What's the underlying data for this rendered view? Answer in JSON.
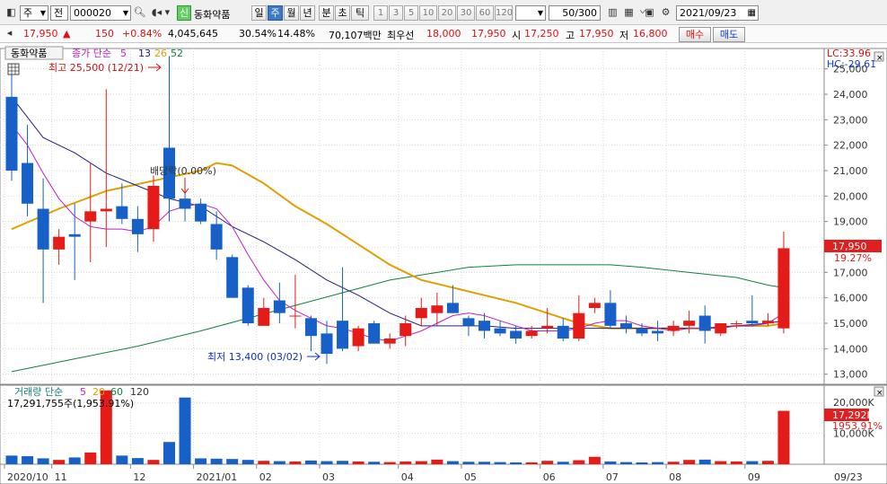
{
  "toolbar": {
    "market": "주",
    "range": "전",
    "code": "000020",
    "badge": "신",
    "stock_name": "동화약품",
    "periods": [
      "일",
      "주",
      "월",
      "년",
      "분",
      "초",
      "틱"
    ],
    "active_period": "주",
    "intervals": [
      "1",
      "3",
      "5",
      "10",
      "20",
      "30",
      "60",
      "120"
    ],
    "count": "50/300",
    "date": "2021/09/23"
  },
  "quote": {
    "price": "17,950",
    "change": "150",
    "change_pct": "+0.84%",
    "volume": "4,045,645",
    "vol_ratio": "30.54%",
    "turnover": "14.48%",
    "amount": "70,107백만",
    "best_label": "최우선",
    "ask": "18,000",
    "bid": "17,950",
    "open_label": "시",
    "open": "17,250",
    "high_label": "고",
    "high": "17,950",
    "low_label": "저",
    "low": "16,800",
    "buy_label": "매수",
    "sell_label": "매도"
  },
  "chart_data": {
    "type": "candlestick",
    "title": "동화약품",
    "legend": {
      "label": "종가 단순",
      "periods": [
        "5",
        "13",
        "26",
        "52"
      ],
      "colors": [
        "#c020c0",
        "#202080",
        "#e0a000",
        "#108040"
      ]
    },
    "y_ticks": [
      "13,000",
      "14,000",
      "15,000",
      "16,000",
      "17,000",
      "18,000",
      "19,000",
      "20,000",
      "21,000",
      "22,000",
      "23,000",
      "24,000",
      "25,000"
    ],
    "ylim": [
      12600,
      25800
    ],
    "lc": "LC:33.96",
    "hc": "HC:-29.61",
    "price_tag": "17,950",
    "pct_tag": "19.27%",
    "high_note": "최고 25,500 (12/21)",
    "low_note": "최저 13,400 (03/02)",
    "dividend_note": "배당락(0.00%)",
    "candles": [
      {
        "o": 23900,
        "h": 25000,
        "l": 20600,
        "c": 21000
      },
      {
        "o": 21300,
        "h": 22800,
        "l": 19200,
        "c": 19700
      },
      {
        "o": 19500,
        "h": 20700,
        "l": 15800,
        "c": 17900
      },
      {
        "o": 17900,
        "h": 18700,
        "l": 17300,
        "c": 18400
      },
      {
        "o": 18500,
        "h": 19700,
        "l": 16700,
        "c": 18400
      },
      {
        "o": 19000,
        "h": 21300,
        "l": 17400,
        "c": 19400
      },
      {
        "o": 19400,
        "h": 24200,
        "l": 18000,
        "c": 19500
      },
      {
        "o": 19600,
        "h": 20500,
        "l": 18900,
        "c": 19100
      },
      {
        "o": 19100,
        "h": 19600,
        "l": 17800,
        "c": 18500
      },
      {
        "o": 18700,
        "h": 20800,
        "l": 18200,
        "c": 20400
      },
      {
        "o": 21900,
        "h": 25500,
        "l": 19000,
        "c": 19900
      },
      {
        "o": 19900,
        "h": 20300,
        "l": 19000,
        "c": 19500
      },
      {
        "o": 19700,
        "h": 19900,
        "l": 18900,
        "c": 19000
      },
      {
        "o": 18900,
        "h": 19400,
        "l": 17500,
        "c": 17900
      },
      {
        "o": 17600,
        "h": 17700,
        "l": 16000,
        "c": 16000
      },
      {
        "o": 16400,
        "h": 16500,
        "l": 14900,
        "c": 15000
      },
      {
        "o": 14900,
        "h": 16000,
        "l": 14900,
        "c": 15600
      },
      {
        "o": 15900,
        "h": 16600,
        "l": 15000,
        "c": 15400
      },
      {
        "o": 15300,
        "h": 16900,
        "l": 14800,
        "c": 15300
      },
      {
        "o": 15200,
        "h": 15300,
        "l": 13900,
        "c": 14500
      },
      {
        "o": 14600,
        "h": 15100,
        "l": 13400,
        "c": 13800
      },
      {
        "o": 15100,
        "h": 17200,
        "l": 13900,
        "c": 14000
      },
      {
        "o": 14100,
        "h": 14900,
        "l": 13900,
        "c": 14800
      },
      {
        "o": 15000,
        "h": 15100,
        "l": 14200,
        "c": 14200
      },
      {
        "o": 14200,
        "h": 14600,
        "l": 14000,
        "c": 14400
      },
      {
        "o": 14500,
        "h": 15300,
        "l": 14100,
        "c": 15000
      },
      {
        "o": 15200,
        "h": 16000,
        "l": 14900,
        "c": 15600
      },
      {
        "o": 15400,
        "h": 16200,
        "l": 14900,
        "c": 15700
      },
      {
        "o": 15800,
        "h": 16500,
        "l": 15400,
        "c": 15400
      },
      {
        "o": 15200,
        "h": 15300,
        "l": 14500,
        "c": 14900
      },
      {
        "o": 15100,
        "h": 15400,
        "l": 14400,
        "c": 14700
      },
      {
        "o": 14800,
        "h": 15100,
        "l": 14500,
        "c": 14600
      },
      {
        "o": 14700,
        "h": 14900,
        "l": 14200,
        "c": 14400
      },
      {
        "o": 14500,
        "h": 14900,
        "l": 14400,
        "c": 14700
      },
      {
        "o": 14800,
        "h": 15600,
        "l": 14600,
        "c": 14900
      },
      {
        "o": 14900,
        "h": 15200,
        "l": 14300,
        "c": 14400
      },
      {
        "o": 14400,
        "h": 16100,
        "l": 14300,
        "c": 15400
      },
      {
        "o": 15600,
        "h": 16000,
        "l": 15400,
        "c": 15800
      },
      {
        "o": 15800,
        "h": 16300,
        "l": 14800,
        "c": 14900
      },
      {
        "o": 15000,
        "h": 15300,
        "l": 14600,
        "c": 14800
      },
      {
        "o": 14800,
        "h": 15000,
        "l": 14500,
        "c": 14600
      },
      {
        "o": 14700,
        "h": 15100,
        "l": 14300,
        "c": 14600
      },
      {
        "o": 14700,
        "h": 15100,
        "l": 14500,
        "c": 14900
      },
      {
        "o": 14900,
        "h": 15500,
        "l": 14600,
        "c": 15100
      },
      {
        "o": 15300,
        "h": 15700,
        "l": 14200,
        "c": 14700
      },
      {
        "o": 14600,
        "h": 15000,
        "l": 14500,
        "c": 15000
      },
      {
        "o": 15000,
        "h": 15100,
        "l": 14800,
        "c": 15000
      },
      {
        "o": 15100,
        "h": 16100,
        "l": 14900,
        "c": 15000
      },
      {
        "o": 15000,
        "h": 15400,
        "l": 14900,
        "c": 15100
      },
      {
        "o": 14800,
        "h": 18600,
        "l": 14600,
        "c": 17950
      }
    ],
    "ma5": [
      22800,
      22000,
      20900,
      19900,
      19200,
      18800,
      18700,
      18700,
      18600,
      18800,
      19400,
      19600,
      19700,
      19500,
      18800,
      17700,
      16700,
      15900,
      15500,
      15200,
      14900,
      14800,
      14600,
      14400,
      14300,
      14500,
      14700,
      15000,
      15300,
      15400,
      15300,
      15100,
      14900,
      14700,
      14700,
      14700,
      14800,
      15000,
      15100,
      15100,
      14900,
      14800,
      14700,
      14800,
      14800,
      14800,
      14900,
      14900,
      15000,
      15400
    ],
    "ma13": [
      null,
      null,
      null,
      null,
      null,
      null,
      null,
      null,
      null,
      null,
      null,
      null,
      null,
      null,
      null,
      null,
      null,
      null,
      null,
      null,
      null,
      null,
      null,
      null,
      null,
      null,
      null,
      null,
      null,
      null,
      null,
      null,
      null,
      null,
      null,
      null,
      null,
      null,
      null,
      null,
      null,
      null,
      null,
      null,
      null,
      null,
      null,
      null,
      null,
      null
    ],
    "ma13_pts": [
      [
        0,
        23900
      ],
      [
        2,
        22300
      ],
      [
        4,
        21700
      ],
      [
        6,
        20900
      ],
      [
        8,
        20400
      ],
      [
        10,
        19900
      ],
      [
        12,
        19600
      ],
      [
        14,
        18800
      ],
      [
        16,
        18200
      ],
      [
        18,
        17500
      ],
      [
        20,
        16700
      ],
      [
        22,
        16100
      ],
      [
        24,
        15400
      ],
      [
        26,
        14900
      ],
      [
        28,
        14900
      ],
      [
        30,
        14900
      ],
      [
        32,
        14800
      ],
      [
        34,
        14800
      ],
      [
        36,
        14800
      ],
      [
        38,
        14800
      ],
      [
        40,
        14800
      ],
      [
        42,
        14800
      ],
      [
        44,
        14800
      ],
      [
        46,
        14900
      ],
      [
        48,
        15000
      ],
      [
        49,
        15100
      ]
    ],
    "ma26_pts": [
      [
        0,
        18700
      ],
      [
        3,
        19500
      ],
      [
        6,
        20200
      ],
      [
        9,
        20600
      ],
      [
        12,
        21000
      ],
      [
        13,
        21300
      ],
      [
        14,
        21200
      ],
      [
        16,
        20500
      ],
      [
        18,
        19600
      ],
      [
        20,
        18900
      ],
      [
        22,
        18100
      ],
      [
        24,
        17300
      ],
      [
        26,
        16700
      ],
      [
        28,
        16400
      ],
      [
        30,
        16100
      ],
      [
        32,
        15800
      ],
      [
        34,
        15400
      ],
      [
        36,
        15000
      ],
      [
        38,
        14800
      ],
      [
        40,
        14800
      ],
      [
        42,
        14800
      ],
      [
        44,
        14800
      ],
      [
        46,
        14900
      ],
      [
        48,
        14900
      ],
      [
        49,
        15000
      ]
    ],
    "ma52_pts": [
      [
        0,
        13100
      ],
      [
        4,
        13600
      ],
      [
        8,
        14100
      ],
      [
        12,
        14700
      ],
      [
        15,
        15200
      ],
      [
        18,
        15700
      ],
      [
        21,
        16200
      ],
      [
        24,
        16700
      ],
      [
        27,
        17000
      ],
      [
        29,
        17200
      ],
      [
        32,
        17300
      ],
      [
        35,
        17300
      ],
      [
        38,
        17300
      ],
      [
        40,
        17200
      ],
      [
        43,
        17000
      ],
      [
        46,
        16800
      ],
      [
        48,
        16500
      ],
      [
        49,
        16400
      ]
    ],
    "vol_legend": {
      "label": "거래량 단순",
      "periods": [
        "5",
        "20",
        "60",
        "120"
      ],
      "colors": [
        "#c020c0",
        "#e0a000",
        "#108040",
        "#333333"
      ]
    },
    "vol_info": "17,291,755주(1,953.91%)",
    "vol_ticks": [
      "10,000K",
      "20,000K"
    ],
    "vol_tag": "17,292K",
    "vol_pct_tag": "1953.91%",
    "vol_ylim": [
      0,
      25000
    ],
    "volumes": [
      2800,
      2600,
      1900,
      1400,
      2200,
      3800,
      23900,
      2800,
      2000,
      1400,
      7200,
      21600,
      1900,
      1800,
      1700,
      1400,
      1100,
      1000,
      900,
      1200,
      1000,
      1100,
      900,
      800,
      700,
      900,
      1000,
      1500,
      1000,
      800,
      800,
      700,
      600,
      600,
      1100,
      800,
      1300,
      2400,
      900,
      700,
      600,
      700,
      800,
      1400,
      1500,
      1000,
      900,
      1000,
      1100,
      17292
    ],
    "x_labels": [
      {
        "i": 0,
        "t": "2020/10"
      },
      {
        "i": 3,
        "t": "11"
      },
      {
        "i": 8,
        "t": "12"
      },
      {
        "i": 12,
        "t": "2021/01"
      },
      {
        "i": 16,
        "t": "02"
      },
      {
        "i": 20,
        "t": "03"
      },
      {
        "i": 25,
        "t": "04"
      },
      {
        "i": 29,
        "t": "05"
      },
      {
        "i": 34,
        "t": "06"
      },
      {
        "i": 38,
        "t": "07"
      },
      {
        "i": 42,
        "t": "08"
      },
      {
        "i": 47,
        "t": "09"
      }
    ],
    "x_end": "09/23"
  }
}
